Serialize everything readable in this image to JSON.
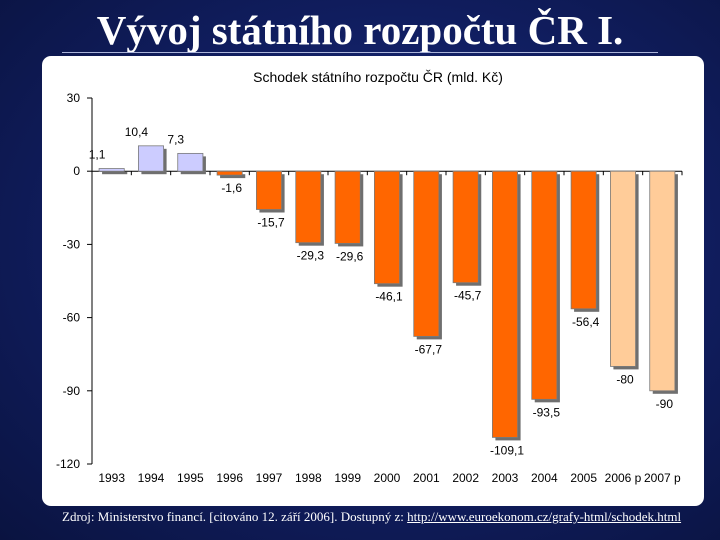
{
  "slide": {
    "title": "Vývoj státního rozpočtu ČR I.",
    "source_text": "Zdroj: Ministerstvo financí. [citováno 12. září 2006]. Dostupný z: ",
    "source_link": "http://www.euroekonom.cz/grafy-html/schodek.html"
  },
  "colors": {
    "surplus": "#ccccff",
    "deficit": "#ff6600",
    "projection": "#ffcc99"
  },
  "chart_data": {
    "type": "bar",
    "title": "Schodek státního rozpočtu ČR (mld. Kč)",
    "xlabel": "",
    "ylabel": "",
    "ylim": [
      -120,
      30
    ],
    "yticks": [
      30,
      0,
      -30,
      -60,
      -90,
      -120
    ],
    "grid": false,
    "categories": [
      "1993",
      "1994",
      "1995",
      "1996",
      "1997",
      "1998",
      "1999",
      "2000",
      "2001",
      "2002",
      "2003",
      "2004",
      "2005",
      "2006 p",
      "2007 p"
    ],
    "values": [
      1.1,
      10.4,
      7.3,
      -1.6,
      -15.7,
      -29.3,
      -29.6,
      -46.1,
      -67.7,
      -45.7,
      -109.1,
      -93.5,
      -56.4,
      -80,
      -90
    ],
    "data_labels": [
      "1,1",
      "10,4",
      "7,3",
      "-1,6",
      "-15,7",
      "-29,3",
      "-29,6",
      "-46,1",
      "-67,7",
      "-45,7",
      "-109,1",
      "-93,5",
      "-56,4",
      "-80",
      "-90"
    ]
  }
}
